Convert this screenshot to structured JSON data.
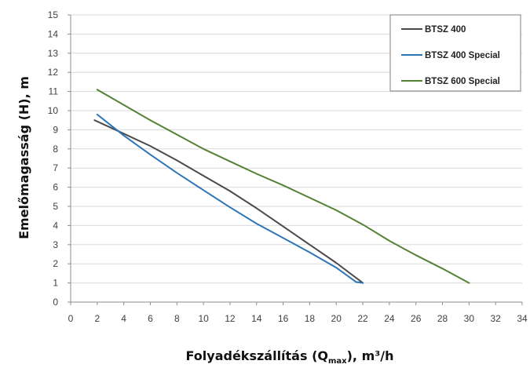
{
  "chart_data": {
    "type": "line",
    "xlabel_parts": {
      "before": "Folyadékszállítás (Q",
      "sub": "max",
      "after": "), m³/h"
    },
    "ylabel": "Emelőmagasság (H), m",
    "xlim": [
      0,
      34
    ],
    "ylim": [
      0,
      15
    ],
    "x_ticks": [
      0,
      2,
      4,
      6,
      8,
      10,
      12,
      14,
      16,
      18,
      20,
      22,
      24,
      26,
      28,
      30,
      32,
      34
    ],
    "y_ticks": [
      0,
      1,
      2,
      3,
      4,
      5,
      6,
      7,
      8,
      9,
      10,
      11,
      12,
      13,
      14,
      15
    ],
    "grid": "horizontal",
    "legend_position": "top-right",
    "series": [
      {
        "name": "BTSZ 400",
        "color": "#4a4a4a",
        "points": [
          [
            1.8,
            9.5
          ],
          [
            4,
            8.8
          ],
          [
            6,
            8.15
          ],
          [
            8,
            7.4
          ],
          [
            10,
            6.6
          ],
          [
            12,
            5.8
          ],
          [
            14,
            4.9
          ],
          [
            16,
            3.95
          ],
          [
            18,
            3.0
          ],
          [
            20,
            2.05
          ],
          [
            22,
            1.0
          ]
        ]
      },
      {
        "name": "BTSZ 400 Special",
        "color": "#2e75b6",
        "points": [
          [
            2,
            9.8
          ],
          [
            4,
            8.7
          ],
          [
            6,
            7.7
          ],
          [
            8,
            6.75
          ],
          [
            10,
            5.85
          ],
          [
            12,
            4.95
          ],
          [
            14,
            4.1
          ],
          [
            16,
            3.35
          ],
          [
            18,
            2.6
          ],
          [
            20,
            1.8
          ],
          [
            21.5,
            1.05
          ],
          [
            22,
            1.0
          ]
        ]
      },
      {
        "name": "BTSZ 600 Special",
        "color": "#548235",
        "points": [
          [
            2,
            11.1
          ],
          [
            4,
            10.3
          ],
          [
            6,
            9.5
          ],
          [
            8,
            8.75
          ],
          [
            10,
            8.0
          ],
          [
            12,
            7.35
          ],
          [
            14,
            6.7
          ],
          [
            16,
            6.1
          ],
          [
            18,
            5.45
          ],
          [
            20,
            4.8
          ],
          [
            22,
            4.05
          ],
          [
            24,
            3.2
          ],
          [
            26,
            2.45
          ],
          [
            28,
            1.75
          ],
          [
            30,
            1.0
          ]
        ]
      }
    ]
  }
}
